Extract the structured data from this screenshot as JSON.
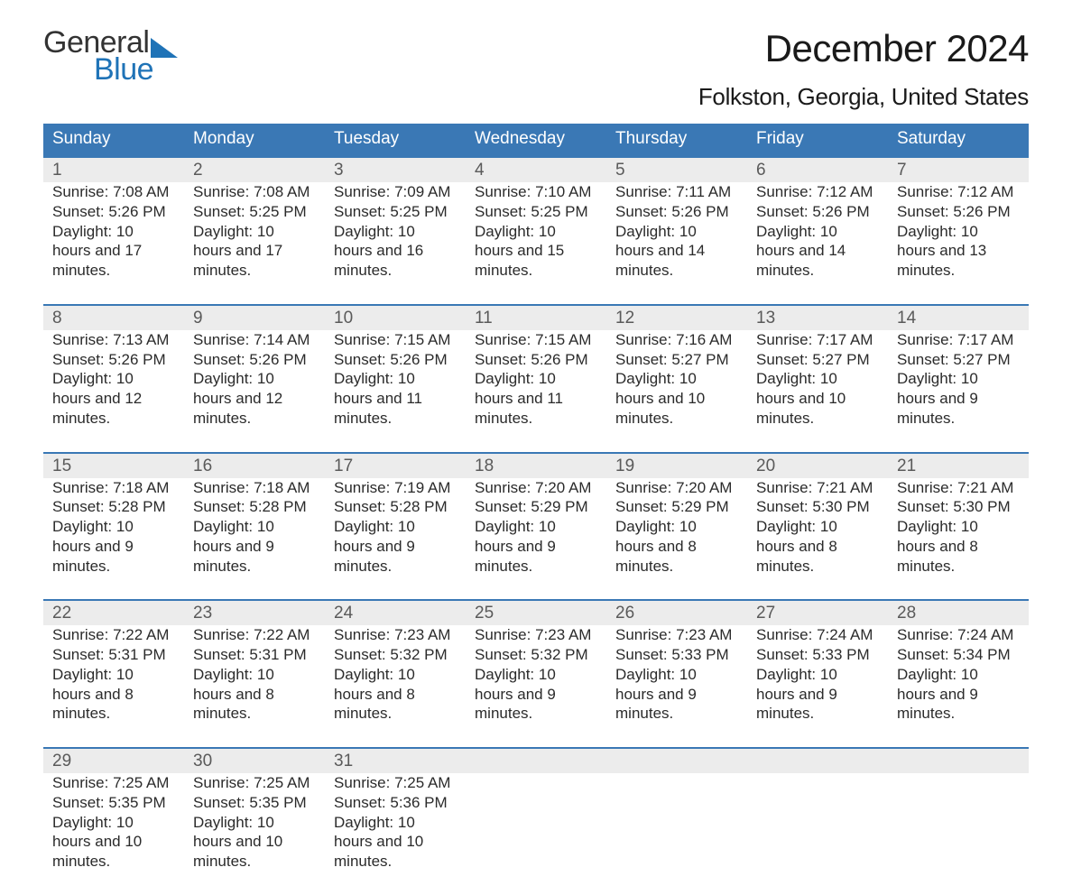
{
  "logo": {
    "text1": "General",
    "text2": "Blue",
    "wedge_color": "#1f73b7",
    "text_color_dark": "#333333",
    "text_color_blue": "#1f73b7"
  },
  "title": "December 2024",
  "location": "Folkston, Georgia, United States",
  "header_bg": "#3a78b5",
  "header_text_color": "#ffffff",
  "daynum_bg": "#ececec",
  "rule_color": "#3a78b5",
  "font_family": "Arial",
  "day_headers": [
    "Sunday",
    "Monday",
    "Tuesday",
    "Wednesday",
    "Thursday",
    "Friday",
    "Saturday"
  ],
  "weeks": [
    [
      {
        "n": "1",
        "sunrise": "7:08 AM",
        "sunset": "5:26 PM",
        "daylight": "10 hours and 17 minutes."
      },
      {
        "n": "2",
        "sunrise": "7:08 AM",
        "sunset": "5:25 PM",
        "daylight": "10 hours and 17 minutes."
      },
      {
        "n": "3",
        "sunrise": "7:09 AM",
        "sunset": "5:25 PM",
        "daylight": "10 hours and 16 minutes."
      },
      {
        "n": "4",
        "sunrise": "7:10 AM",
        "sunset": "5:25 PM",
        "daylight": "10 hours and 15 minutes."
      },
      {
        "n": "5",
        "sunrise": "7:11 AM",
        "sunset": "5:26 PM",
        "daylight": "10 hours and 14 minutes."
      },
      {
        "n": "6",
        "sunrise": "7:12 AM",
        "sunset": "5:26 PM",
        "daylight": "10 hours and 14 minutes."
      },
      {
        "n": "7",
        "sunrise": "7:12 AM",
        "sunset": "5:26 PM",
        "daylight": "10 hours and 13 minutes."
      }
    ],
    [
      {
        "n": "8",
        "sunrise": "7:13 AM",
        "sunset": "5:26 PM",
        "daylight": "10 hours and 12 minutes."
      },
      {
        "n": "9",
        "sunrise": "7:14 AM",
        "sunset": "5:26 PM",
        "daylight": "10 hours and 12 minutes."
      },
      {
        "n": "10",
        "sunrise": "7:15 AM",
        "sunset": "5:26 PM",
        "daylight": "10 hours and 11 minutes."
      },
      {
        "n": "11",
        "sunrise": "7:15 AM",
        "sunset": "5:26 PM",
        "daylight": "10 hours and 11 minutes."
      },
      {
        "n": "12",
        "sunrise": "7:16 AM",
        "sunset": "5:27 PM",
        "daylight": "10 hours and 10 minutes."
      },
      {
        "n": "13",
        "sunrise": "7:17 AM",
        "sunset": "5:27 PM",
        "daylight": "10 hours and 10 minutes."
      },
      {
        "n": "14",
        "sunrise": "7:17 AM",
        "sunset": "5:27 PM",
        "daylight": "10 hours and 9 minutes."
      }
    ],
    [
      {
        "n": "15",
        "sunrise": "7:18 AM",
        "sunset": "5:28 PM",
        "daylight": "10 hours and 9 minutes."
      },
      {
        "n": "16",
        "sunrise": "7:18 AM",
        "sunset": "5:28 PM",
        "daylight": "10 hours and 9 minutes."
      },
      {
        "n": "17",
        "sunrise": "7:19 AM",
        "sunset": "5:28 PM",
        "daylight": "10 hours and 9 minutes."
      },
      {
        "n": "18",
        "sunrise": "7:20 AM",
        "sunset": "5:29 PM",
        "daylight": "10 hours and 9 minutes."
      },
      {
        "n": "19",
        "sunrise": "7:20 AM",
        "sunset": "5:29 PM",
        "daylight": "10 hours and 8 minutes."
      },
      {
        "n": "20",
        "sunrise": "7:21 AM",
        "sunset": "5:30 PM",
        "daylight": "10 hours and 8 minutes."
      },
      {
        "n": "21",
        "sunrise": "7:21 AM",
        "sunset": "5:30 PM",
        "daylight": "10 hours and 8 minutes."
      }
    ],
    [
      {
        "n": "22",
        "sunrise": "7:22 AM",
        "sunset": "5:31 PM",
        "daylight": "10 hours and 8 minutes."
      },
      {
        "n": "23",
        "sunrise": "7:22 AM",
        "sunset": "5:31 PM",
        "daylight": "10 hours and 8 minutes."
      },
      {
        "n": "24",
        "sunrise": "7:23 AM",
        "sunset": "5:32 PM",
        "daylight": "10 hours and 8 minutes."
      },
      {
        "n": "25",
        "sunrise": "7:23 AM",
        "sunset": "5:32 PM",
        "daylight": "10 hours and 9 minutes."
      },
      {
        "n": "26",
        "sunrise": "7:23 AM",
        "sunset": "5:33 PM",
        "daylight": "10 hours and 9 minutes."
      },
      {
        "n": "27",
        "sunrise": "7:24 AM",
        "sunset": "5:33 PM",
        "daylight": "10 hours and 9 minutes."
      },
      {
        "n": "28",
        "sunrise": "7:24 AM",
        "sunset": "5:34 PM",
        "daylight": "10 hours and 9 minutes."
      }
    ],
    [
      {
        "n": "29",
        "sunrise": "7:25 AM",
        "sunset": "5:35 PM",
        "daylight": "10 hours and 10 minutes."
      },
      {
        "n": "30",
        "sunrise": "7:25 AM",
        "sunset": "5:35 PM",
        "daylight": "10 hours and 10 minutes."
      },
      {
        "n": "31",
        "sunrise": "7:25 AM",
        "sunset": "5:36 PM",
        "daylight": "10 hours and 10 minutes."
      },
      null,
      null,
      null,
      null
    ]
  ],
  "labels": {
    "sunrise": "Sunrise: ",
    "sunset": "Sunset: ",
    "daylight": "Daylight: "
  }
}
